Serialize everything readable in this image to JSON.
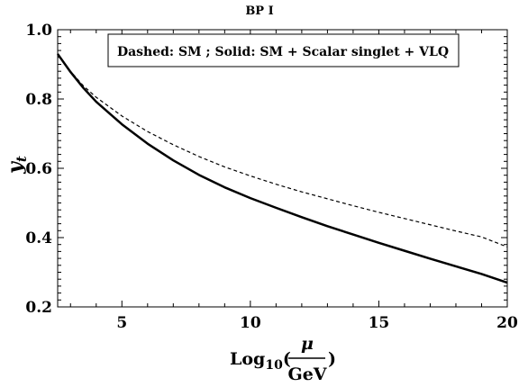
{
  "chart_data": {
    "type": "line",
    "title": "BP I",
    "legend_text": "Dashed: SM  ;  Solid: SM + Scalar singlet + VLQ",
    "legend_position": "top-right",
    "xlabel": {
      "prefix": "Log",
      "sub": "10",
      "open_paren": "(",
      "numerator": "μ",
      "denominator": "GeV",
      "close_paren": ")"
    },
    "ylabel": {
      "main": "y",
      "sub": "t"
    },
    "xlim": [
      2.5,
      20
    ],
    "ylim": [
      0.2,
      1.0
    ],
    "x_ticks": [
      {
        "value": 5,
        "label": "5"
      },
      {
        "value": 10,
        "label": "10"
      },
      {
        "value": 15,
        "label": "15"
      },
      {
        "value": 20,
        "label": "20"
      }
    ],
    "y_ticks": [
      {
        "value": 0.2,
        "label": "0.2"
      },
      {
        "value": 0.4,
        "label": "0.4"
      },
      {
        "value": 0.6,
        "label": "0.6"
      },
      {
        "value": 0.8,
        "label": "0.8"
      },
      {
        "value": 1.0,
        "label": "1.0"
      }
    ],
    "grid": false,
    "series": [
      {
        "style": "dashed",
        "color": "#000000",
        "x": [
          2.5,
          3,
          3.5,
          4,
          5,
          6,
          7,
          8,
          9,
          10,
          11,
          12,
          13,
          14,
          15,
          16,
          17,
          18,
          19,
          20
        ],
        "y": [
          0.93,
          0.88,
          0.838,
          0.805,
          0.751,
          0.706,
          0.668,
          0.634,
          0.604,
          0.578,
          0.554,
          0.532,
          0.512,
          0.492,
          0.473,
          0.455,
          0.437,
          0.419,
          0.402,
          0.373
        ]
      },
      {
        "style": "solid",
        "color": "#000000",
        "x": [
          2.5,
          3,
          3.5,
          4,
          5,
          6,
          7,
          8,
          9,
          10,
          11,
          12,
          13,
          14,
          15,
          16,
          17,
          18,
          19,
          20
        ],
        "y": [
          0.93,
          0.878,
          0.832,
          0.792,
          0.727,
          0.671,
          0.623,
          0.581,
          0.545,
          0.514,
          0.486,
          0.459,
          0.433,
          0.409,
          0.385,
          0.362,
          0.339,
          0.317,
          0.295,
          0.27
        ]
      }
    ]
  }
}
